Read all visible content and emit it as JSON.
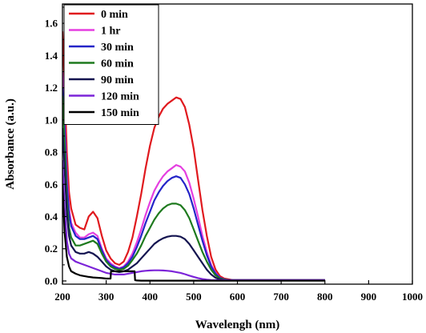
{
  "chart_data": {
    "type": "line",
    "title": "",
    "xlabel": "Wavelengh (nm)",
    "ylabel": "Absorbance (a.u.)",
    "xlim": [
      200,
      1000
    ],
    "ylim": [
      -0.02,
      1.72
    ],
    "xticks": [
      200,
      300,
      400,
      500,
      600,
      700,
      800,
      900,
      1000
    ],
    "yticks": [
      0.0,
      0.2,
      0.4,
      0.6,
      0.8,
      1.0,
      1.2,
      1.4,
      1.6
    ],
    "ytick_labels": [
      "0.0",
      "0.2",
      "0.4",
      "0.6",
      "0.8",
      "1.0",
      "1.2",
      "1.4",
      "1.6"
    ],
    "grid": false,
    "legend": "top-left",
    "series": [
      {
        "name": "0 min",
        "color": "#e0191e",
        "x": [
          200,
          205,
          210,
          215,
          220,
          230,
          240,
          250,
          260,
          270,
          280,
          290,
          300,
          310,
          320,
          330,
          340,
          350,
          360,
          370,
          380,
          390,
          400,
          410,
          420,
          430,
          440,
          450,
          460,
          470,
          480,
          490,
          500,
          510,
          520,
          530,
          540,
          550,
          560,
          570,
          580,
          590,
          600,
          650,
          700,
          750,
          800
        ],
        "y": [
          1.55,
          1.2,
          0.8,
          0.55,
          0.45,
          0.35,
          0.33,
          0.32,
          0.4,
          0.43,
          0.39,
          0.28,
          0.19,
          0.14,
          0.11,
          0.1,
          0.12,
          0.18,
          0.27,
          0.4,
          0.54,
          0.7,
          0.84,
          0.95,
          1.02,
          1.07,
          1.1,
          1.12,
          1.14,
          1.13,
          1.08,
          0.97,
          0.82,
          0.63,
          0.44,
          0.28,
          0.15,
          0.07,
          0.03,
          0.015,
          0.01,
          0.005,
          0.005,
          0.005,
          0.005,
          0.005,
          0.005
        ]
      },
      {
        "name": "1 hr",
        "color": "#e53fe0",
        "x": [
          200,
          205,
          210,
          215,
          220,
          230,
          240,
          250,
          260,
          270,
          280,
          290,
          300,
          310,
          320,
          330,
          340,
          350,
          360,
          370,
          380,
          390,
          400,
          410,
          420,
          430,
          440,
          450,
          460,
          470,
          480,
          490,
          500,
          510,
          520,
          530,
          540,
          550,
          560,
          570,
          580,
          590,
          600,
          650,
          700,
          750,
          800
        ],
        "y": [
          1.3,
          1.0,
          0.65,
          0.45,
          0.36,
          0.3,
          0.27,
          0.27,
          0.29,
          0.3,
          0.28,
          0.2,
          0.14,
          0.11,
          0.09,
          0.08,
          0.09,
          0.12,
          0.17,
          0.24,
          0.32,
          0.41,
          0.49,
          0.56,
          0.61,
          0.65,
          0.68,
          0.7,
          0.72,
          0.71,
          0.68,
          0.61,
          0.51,
          0.4,
          0.28,
          0.18,
          0.1,
          0.05,
          0.02,
          0.01,
          0.005,
          0.005,
          0.005,
          0.005,
          0.005,
          0.005,
          0.005
        ]
      },
      {
        "name": "30 min",
        "color": "#2424c8",
        "x": [
          200,
          205,
          210,
          215,
          220,
          230,
          240,
          250,
          260,
          270,
          280,
          290,
          300,
          310,
          320,
          330,
          340,
          350,
          360,
          370,
          380,
          390,
          400,
          410,
          420,
          430,
          440,
          450,
          460,
          470,
          480,
          490,
          500,
          510,
          520,
          530,
          540,
          550,
          560,
          570,
          580,
          590,
          600,
          650,
          700,
          750,
          800
        ],
        "y": [
          1.2,
          0.95,
          0.6,
          0.42,
          0.34,
          0.28,
          0.26,
          0.26,
          0.27,
          0.28,
          0.26,
          0.19,
          0.13,
          0.1,
          0.085,
          0.075,
          0.085,
          0.11,
          0.15,
          0.21,
          0.28,
          0.36,
          0.43,
          0.5,
          0.55,
          0.59,
          0.62,
          0.64,
          0.65,
          0.64,
          0.6,
          0.54,
          0.45,
          0.35,
          0.25,
          0.16,
          0.09,
          0.045,
          0.02,
          0.01,
          0.005,
          0.005,
          0.005,
          0.005,
          0.005,
          0.005,
          0.005
        ]
      },
      {
        "name": "60 min",
        "color": "#1e7a1e",
        "x": [
          200,
          205,
          210,
          215,
          220,
          230,
          240,
          250,
          260,
          270,
          280,
          290,
          300,
          310,
          320,
          330,
          340,
          350,
          360,
          370,
          380,
          390,
          400,
          410,
          420,
          430,
          440,
          450,
          460,
          470,
          480,
          490,
          500,
          510,
          520,
          530,
          540,
          550,
          560,
          570,
          580,
          590,
          600,
          650,
          700,
          750,
          800
        ],
        "y": [
          1.15,
          0.85,
          0.5,
          0.33,
          0.27,
          0.22,
          0.22,
          0.23,
          0.24,
          0.25,
          0.23,
          0.17,
          0.12,
          0.09,
          0.075,
          0.07,
          0.075,
          0.095,
          0.13,
          0.17,
          0.22,
          0.28,
          0.33,
          0.38,
          0.42,
          0.45,
          0.47,
          0.48,
          0.48,
          0.47,
          0.44,
          0.39,
          0.32,
          0.25,
          0.18,
          0.12,
          0.07,
          0.035,
          0.015,
          0.008,
          0.005,
          0.005,
          0.005,
          0.005,
          0.005,
          0.005,
          0.005
        ]
      },
      {
        "name": "90 min",
        "color": "#141450",
        "x": [
          200,
          205,
          210,
          215,
          220,
          230,
          240,
          250,
          260,
          270,
          280,
          290,
          300,
          310,
          320,
          330,
          340,
          350,
          360,
          370,
          380,
          390,
          400,
          410,
          420,
          430,
          440,
          450,
          460,
          470,
          480,
          490,
          500,
          510,
          520,
          530,
          540,
          550,
          560,
          570,
          580,
          590,
          600,
          650,
          700,
          750,
          800
        ],
        "y": [
          0.95,
          0.7,
          0.42,
          0.28,
          0.22,
          0.18,
          0.17,
          0.17,
          0.18,
          0.17,
          0.15,
          0.12,
          0.09,
          0.07,
          0.06,
          0.055,
          0.06,
          0.07,
          0.09,
          0.11,
          0.14,
          0.17,
          0.2,
          0.23,
          0.25,
          0.265,
          0.275,
          0.28,
          0.28,
          0.275,
          0.26,
          0.23,
          0.19,
          0.15,
          0.11,
          0.07,
          0.04,
          0.02,
          0.01,
          0.005,
          0.005,
          0.005,
          0.005,
          0.005,
          0.005,
          0.005,
          0.005
        ]
      },
      {
        "name": "120 min",
        "color": "#7c24d8",
        "x": [
          200,
          205,
          210,
          215,
          220,
          230,
          240,
          250,
          260,
          270,
          280,
          290,
          300,
          310,
          320,
          330,
          340,
          350,
          360,
          370,
          380,
          390,
          400,
          410,
          420,
          430,
          440,
          450,
          460,
          470,
          480,
          490,
          500,
          510,
          520,
          530,
          540,
          550,
          560,
          570,
          580,
          590,
          600,
          650,
          700,
          750,
          800
        ],
        "y": [
          0.75,
          0.45,
          0.25,
          0.17,
          0.14,
          0.12,
          0.11,
          0.1,
          0.09,
          0.08,
          0.07,
          0.06,
          0.05,
          0.045,
          0.04,
          0.04,
          0.04,
          0.045,
          0.05,
          0.055,
          0.06,
          0.063,
          0.065,
          0.066,
          0.066,
          0.065,
          0.063,
          0.06,
          0.055,
          0.05,
          0.042,
          0.033,
          0.025,
          0.018,
          0.012,
          0.008,
          0.006,
          0.005,
          0.005,
          0.005,
          0.005,
          0.005,
          0.005,
          0.005,
          0.005,
          0.005,
          0.005
        ]
      },
      {
        "name": "150 min",
        "color": "#000000",
        "x": [
          200,
          205,
          210,
          215,
          220,
          230,
          240,
          250,
          260,
          270,
          280,
          290,
          300,
          305,
          310,
          311,
          320,
          330,
          340,
          350,
          360,
          365,
          366,
          370,
          380,
          400,
          450,
          500,
          550,
          600,
          650,
          700,
          750,
          800
        ],
        "y": [
          0.6,
          0.3,
          0.15,
          0.09,
          0.06,
          0.045,
          0.035,
          0.03,
          0.025,
          0.022,
          0.02,
          0.018,
          0.015,
          0.015,
          0.015,
          0.06,
          0.06,
          0.06,
          0.06,
          0.06,
          0.06,
          0.06,
          0.005,
          0.003,
          0.002,
          0.002,
          0.002,
          0.002,
          0.002,
          0.002,
          0.002,
          0.002,
          0.002,
          0.002
        ]
      }
    ]
  }
}
